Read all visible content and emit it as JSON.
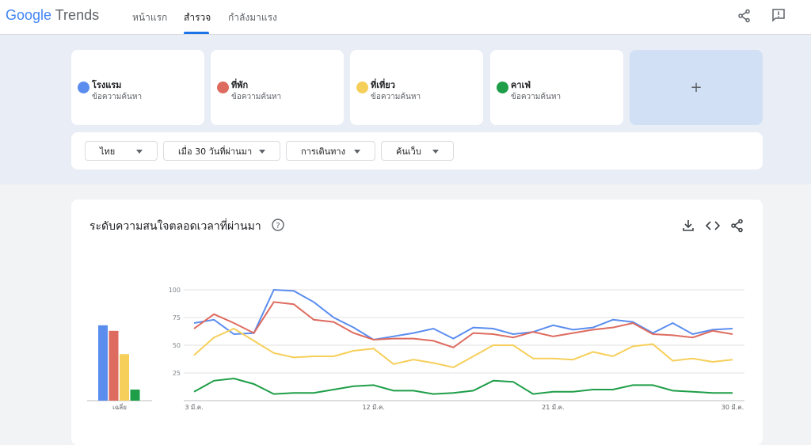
{
  "header": {
    "logo_google": "Google",
    "logo_trends": "Trends",
    "tabs": [
      "หน้าแรก",
      "สำรวจ",
      "กำลังมาแรง"
    ]
  },
  "term_kind": "ข้อความค้นหา",
  "add_button": "+",
  "filters": [
    "ไทย",
    "เมื่อ 30 วันที่ผ่านมา",
    "การเดินทาง",
    "ค้นเว็บ"
  ],
  "chart_data": {
    "type": "line",
    "title": "ระดับความสนใจตลอดเวลาที่ผ่านมา",
    "categories": [
      "3 มี.ค.",
      null,
      null,
      null,
      null,
      null,
      null,
      null,
      null,
      "12 มี.ค.",
      null,
      null,
      null,
      null,
      null,
      null,
      null,
      null,
      "21 มี.ค.",
      null,
      null,
      null,
      null,
      null,
      null,
      null,
      null,
      "30 มี.ค."
    ],
    "series": [
      {
        "name": "โรงแรม",
        "color": "#5b8def",
        "average": 68,
        "values": [
          70,
          73,
          60,
          61,
          100,
          99,
          89,
          75,
          66,
          55,
          58,
          61,
          65,
          56,
          66,
          65,
          60,
          62,
          68,
          64,
          66,
          73,
          71,
          61,
          70,
          60,
          64,
          65
        ]
      },
      {
        "name": "ที่พัก",
        "color": "#de6b5f",
        "average": 63,
        "values": [
          65,
          78,
          70,
          61,
          89,
          87,
          73,
          71,
          61,
          55,
          56,
          56,
          54,
          48,
          61,
          60,
          57,
          62,
          58,
          61,
          64,
          66,
          70,
          60,
          59,
          57,
          63,
          60
        ]
      },
      {
        "name": "ที่เที่ยว",
        "color": "#f6cf5a",
        "average": 42,
        "values": [
          41,
          57,
          65,
          54,
          43,
          39,
          40,
          40,
          45,
          47,
          33,
          37,
          34,
          30,
          40,
          50,
          50,
          38,
          38,
          37,
          44,
          40,
          49,
          51,
          36,
          38,
          35,
          37
        ]
      },
      {
        "name": "คาเฟ่",
        "color": "#1e9e48",
        "average": 10,
        "values": [
          8,
          18,
          20,
          15,
          6,
          7,
          7,
          10,
          13,
          14,
          9,
          9,
          6,
          7,
          9,
          18,
          17,
          6,
          8,
          8,
          10,
          10,
          14,
          14,
          9,
          8,
          7,
          7
        ]
      }
    ],
    "average_label": "เฉลี่ย",
    "ylim": [
      0,
      100
    ],
    "yticks": [
      25,
      50,
      75,
      100
    ],
    "grid": true
  }
}
